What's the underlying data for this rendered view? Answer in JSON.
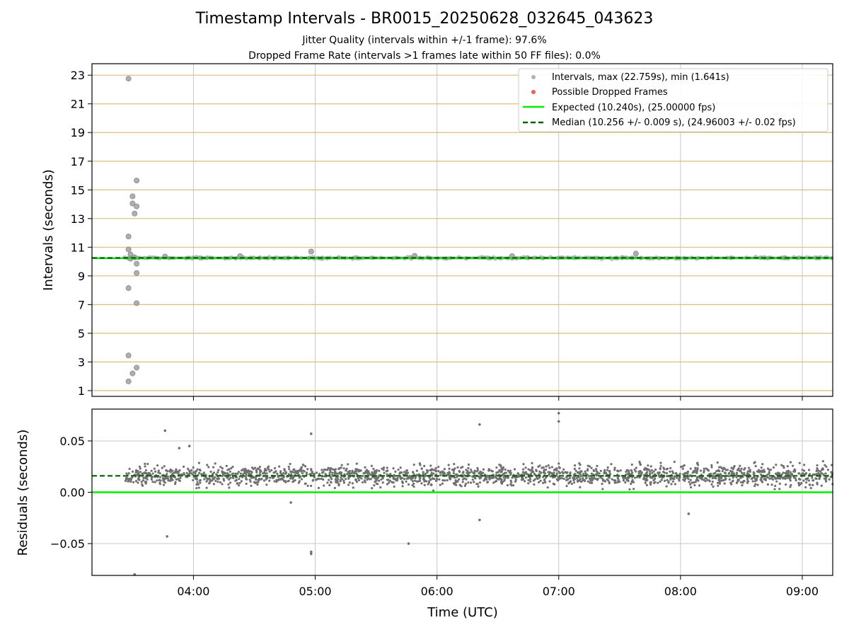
{
  "title": "Timestamp Intervals - BR0015_20250628_032645_043623",
  "subtitle_lines": [
    "Jitter Quality (intervals within +/-1 frame): 97.6%",
    "Dropped Frame Rate (intervals >1 frames late within 50 FF files): 0.0%"
  ],
  "colors": {
    "interval_points": "#a0a0a0",
    "dropped_points": "#e8605a",
    "expected_line": "#00ee00",
    "median_line": "#006400",
    "horizontal_grid": "#d9bf77",
    "vertical_grid": "#c8c8c8",
    "residual_points": "#707070"
  },
  "chart_data": [
    {
      "type": "scatter",
      "ylabel": "Intervals (seconds)",
      "ylim": [
        0.6,
        23.8
      ],
      "xlim": [
        "03:10",
        "09:15"
      ],
      "yticks": [
        "1",
        "3",
        "5",
        "7",
        "9",
        "11",
        "13",
        "15",
        "17",
        "19",
        "21",
        "23"
      ],
      "grid": "on",
      "legend_position": "top-right",
      "legend": [
        {
          "label": "Intervals, max (22.759s), min (1.641s)",
          "kind": "marker",
          "color": "#a0a0a0"
        },
        {
          "label": "Possible Dropped Frames",
          "kind": "marker",
          "color": "#e8605a"
        },
        {
          "label": "Expected (10.240s), (25.00000 fps)",
          "kind": "line",
          "color": "#00ee00"
        },
        {
          "label": "Median (10.256 +/- 0.009 s), (24.96003 +/- 0.02 fps)",
          "kind": "dashed",
          "color": "#006400"
        }
      ],
      "expected_value": 10.24,
      "median_value": 10.256,
      "typical_interval_band": [
        10.16,
        10.34
      ],
      "outliers": [
        {
          "x": "03:28",
          "y": 22.76
        },
        {
          "x": "03:32",
          "y": 15.65
        },
        {
          "x": "03:30",
          "y": 14.55
        },
        {
          "x": "03:30",
          "y": 14.05
        },
        {
          "x": "03:32",
          "y": 13.85
        },
        {
          "x": "03:31",
          "y": 13.35
        },
        {
          "x": "03:28",
          "y": 11.75
        },
        {
          "x": "03:28",
          "y": 10.85
        },
        {
          "x": "03:29",
          "y": 10.5
        },
        {
          "x": "03:29",
          "y": 10.2
        },
        {
          "x": "03:31",
          "y": 10.3
        },
        {
          "x": "03:32",
          "y": 9.85
        },
        {
          "x": "03:32",
          "y": 9.2
        },
        {
          "x": "03:28",
          "y": 8.15
        },
        {
          "x": "03:32",
          "y": 7.1
        },
        {
          "x": "03:28",
          "y": 3.45
        },
        {
          "x": "03:32",
          "y": 2.6
        },
        {
          "x": "03:30",
          "y": 2.2
        },
        {
          "x": "03:28",
          "y": 1.64
        },
        {
          "x": "04:58",
          "y": 10.7
        },
        {
          "x": "07:38",
          "y": 10.55
        },
        {
          "x": "05:49",
          "y": 10.4
        },
        {
          "x": "04:23",
          "y": 10.38
        },
        {
          "x": "06:37",
          "y": 10.38
        },
        {
          "x": "03:46",
          "y": 10.35
        }
      ]
    },
    {
      "type": "scatter",
      "xlabel": "Time (UTC)",
      "ylabel": "Residuals (seconds)",
      "ylim": [
        -0.081,
        0.081
      ],
      "xlim": [
        "03:10",
        "09:15"
      ],
      "xticks": [
        "04:00",
        "05:00",
        "06:00",
        "07:00",
        "08:00",
        "09:00"
      ],
      "yticks": [
        "−0.05",
        "0.00",
        "0.05"
      ],
      "grid": "on",
      "expected_value": 0.0,
      "median_value": 0.016,
      "point_count": 2000,
      "time_range": [
        "03:26",
        "09:15"
      ],
      "typical_residual_range": [
        -0.005,
        0.035
      ],
      "outliers": [
        {
          "x": "03:31",
          "y": -0.08
        },
        {
          "x": "03:47",
          "y": -0.043
        },
        {
          "x": "03:46",
          "y": 0.06
        },
        {
          "x": "03:53",
          "y": 0.043
        },
        {
          "x": "03:58",
          "y": 0.045
        },
        {
          "x": "04:58",
          "y": 0.057
        },
        {
          "x": "04:58",
          "y": -0.058
        },
        {
          "x": "04:58",
          "y": -0.06
        },
        {
          "x": "05:46",
          "y": -0.05
        },
        {
          "x": "06:21",
          "y": 0.066
        },
        {
          "x": "06:21",
          "y": -0.027
        },
        {
          "x": "07:00",
          "y": 0.077
        },
        {
          "x": "07:00",
          "y": 0.069
        },
        {
          "x": "04:48",
          "y": -0.01
        },
        {
          "x": "08:04",
          "y": -0.021
        }
      ]
    }
  ]
}
